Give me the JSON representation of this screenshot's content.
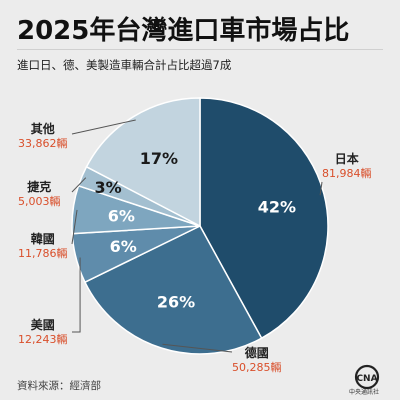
{
  "header": {
    "title": "2025年台灣進口車市場占比",
    "subtitle": "進口日、德、美製造車輛合計占比超過7成"
  },
  "footer": {
    "source": "資料來源：經濟部",
    "logo_text": "CNA",
    "logo_caption": "中央通訊社"
  },
  "colors": {
    "日本": "#1f4c6b",
    "德國": "#3d6e8f",
    "美國": "#5f8cab",
    "韓國": "#7ea6bf",
    "捷克": "#a3bfd0",
    "其他": "#c2d4df",
    "value_text": "#d94f2b"
  },
  "chart_data": {
    "type": "pie",
    "title": "2025年台灣進口車市場占比",
    "subtitle": "進口日、德、美製造車輛合計占比超過7成",
    "unit": "輛",
    "slices": [
      {
        "name": "日本",
        "percent": 42,
        "value": 81984,
        "value_label": "81,984輛",
        "percent_label": "42%"
      },
      {
        "name": "德國",
        "percent": 26,
        "value": 50285,
        "value_label": "50,285輛",
        "percent_label": "26%"
      },
      {
        "name": "美國",
        "percent": 6,
        "value": 12243,
        "value_label": "12,243輛",
        "percent_label": "6%"
      },
      {
        "name": "韓國",
        "percent": 6,
        "value": 11786,
        "value_label": "11,786輛",
        "percent_label": "6%"
      },
      {
        "name": "捷克",
        "percent": 3,
        "value": 5003,
        "value_label": "5,003輛",
        "percent_label": "3%"
      },
      {
        "name": "其他",
        "percent": 17,
        "value": 33862,
        "value_label": "33,862輛",
        "percent_label": "17%"
      }
    ]
  }
}
